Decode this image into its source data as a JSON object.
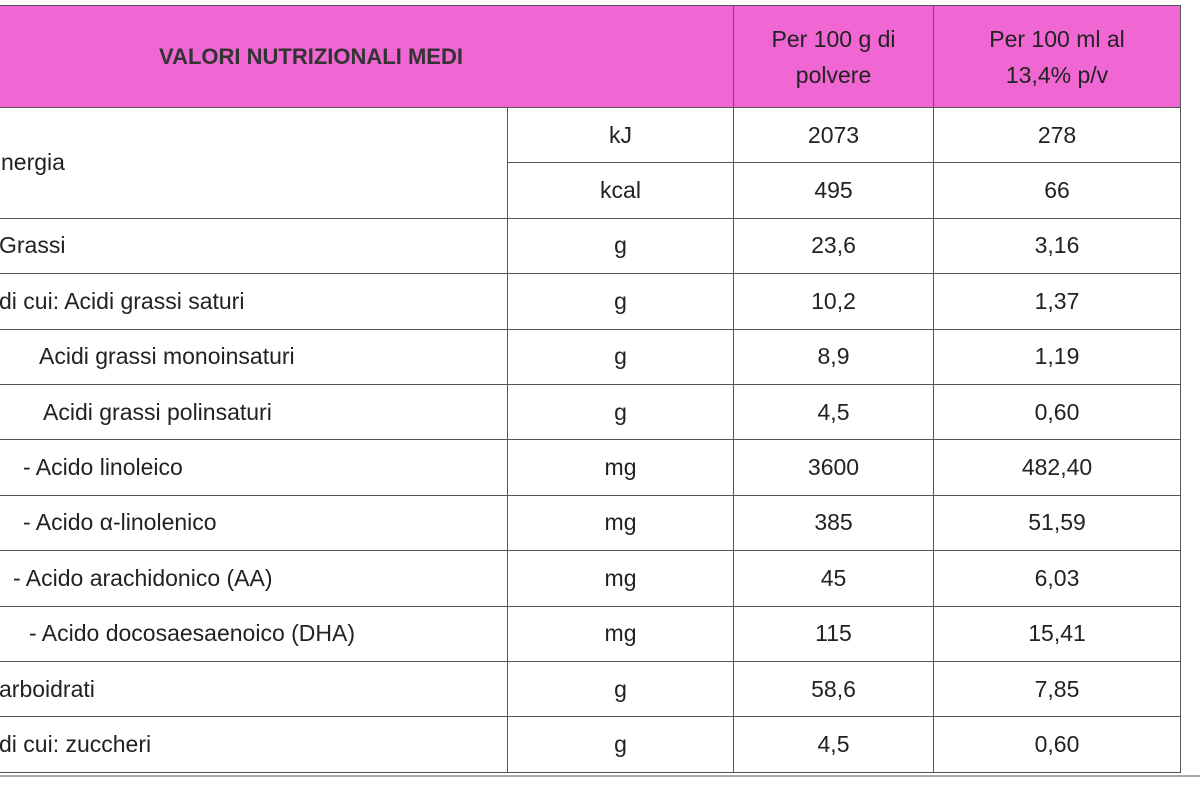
{
  "header": {
    "title": "VALORI NUTRIZIONALI MEDI",
    "col1": "Per 100 g di polvere",
    "col2": "Per 100 ml al 13,4% p/v"
  },
  "rows": [
    [
      "nergia",
      "kJ",
      "2073",
      "278"
    ],
    [
      "kcal",
      "495",
      "66"
    ],
    [
      "Grassi",
      "g",
      "23,6",
      "3,16"
    ],
    [
      "di cui: Acidi grassi saturi",
      "g",
      "10,2",
      "1,37"
    ],
    [
      "Acidi grassi monoinsaturi",
      "g",
      "8,9",
      "1,19"
    ],
    [
      "Acidi grassi polinsaturi",
      "g",
      "4,5",
      "0,60"
    ],
    [
      "-  Acido linoleico",
      "mg",
      "3600",
      "482,40"
    ],
    [
      "-  Acido α-linolenico",
      "mg",
      "385",
      "51,59"
    ],
    [
      "- Acido arachidonico (AA)",
      "mg",
      "45",
      "6,03"
    ],
    [
      "- Acido docosaesaenoico (DHA)",
      "mg",
      "115",
      "15,41"
    ],
    [
      "arboidrati",
      "g",
      "58,6",
      "7,85"
    ],
    [
      "di cui: zuccheri",
      "g",
      "4,5",
      "0,60"
    ]
  ]
}
